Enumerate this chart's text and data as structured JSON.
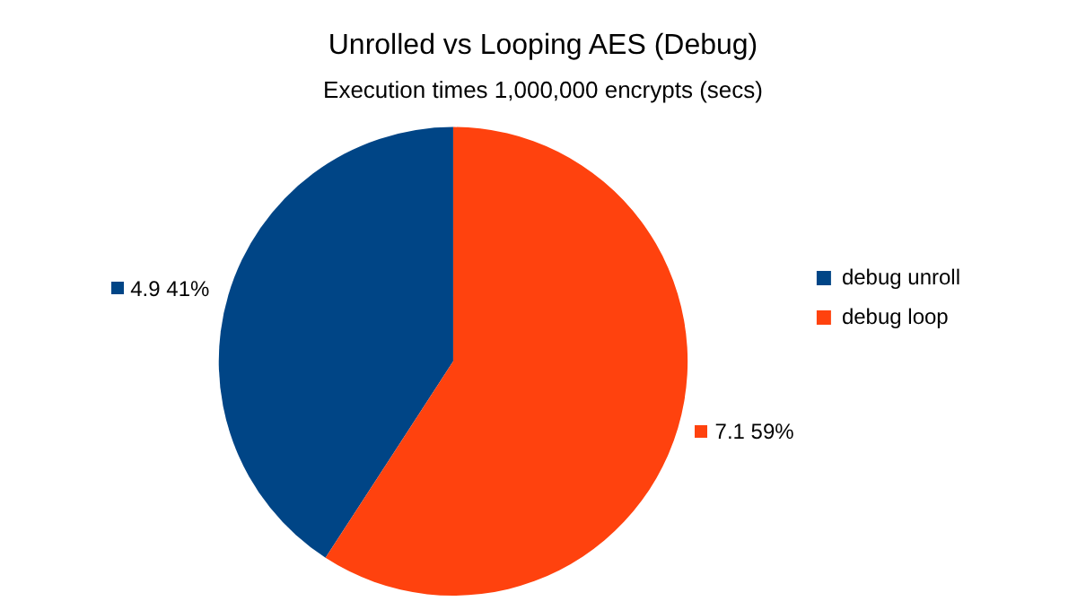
{
  "chart_data": {
    "type": "pie",
    "title": "Unrolled vs Looping AES (Debug)",
    "subtitle": "Execution times 1,000,000 encrypts (secs)",
    "categories": [
      "debug unroll",
      "debug loop"
    ],
    "values": [
      4.9,
      7.1
    ],
    "colors": [
      "#004586",
      "#ff420e"
    ],
    "value_labels": [
      "4.9 41%",
      "7.1 59%"
    ],
    "legend": "right"
  }
}
